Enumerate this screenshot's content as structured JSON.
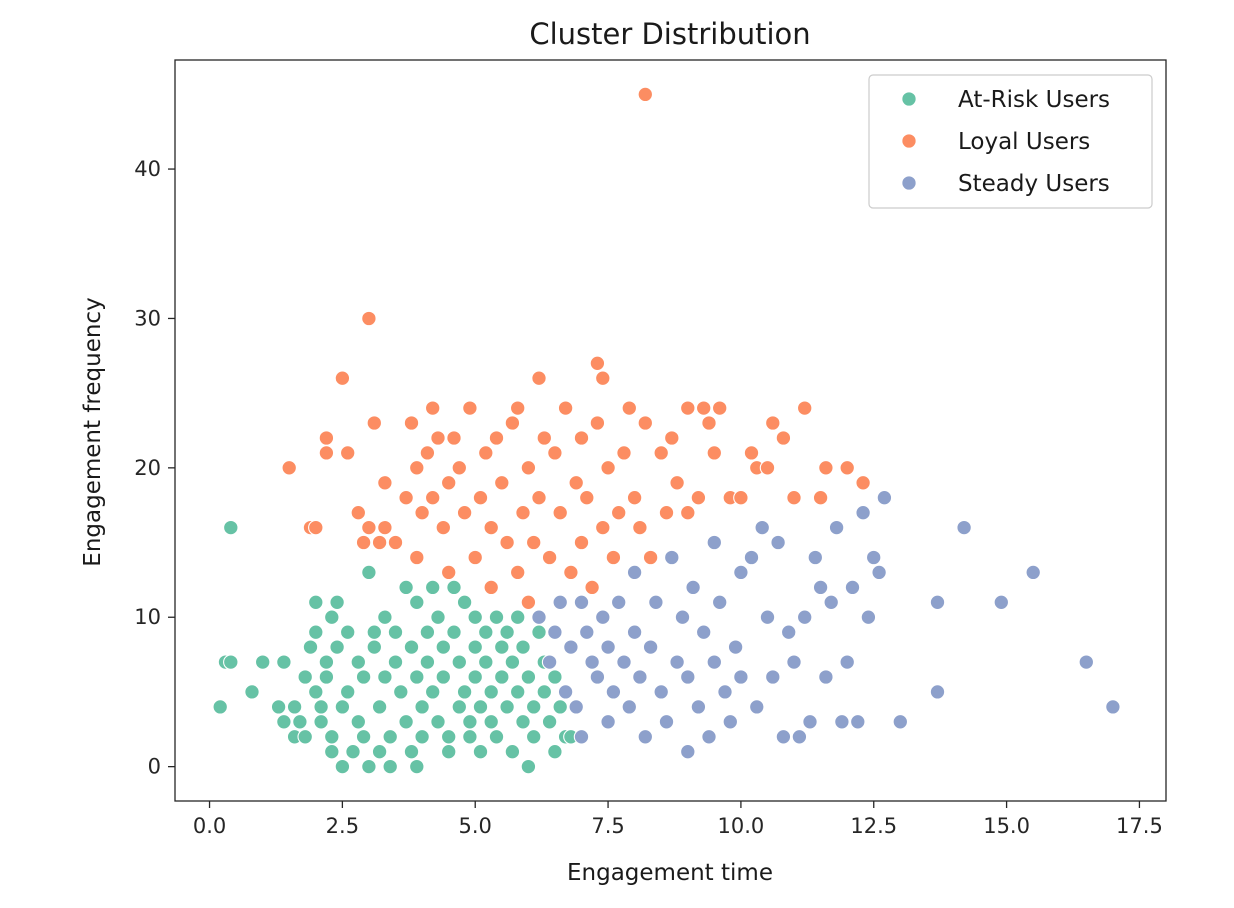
{
  "chart_data": {
    "type": "scatter",
    "title": "Cluster Distribution",
    "xlabel": "Engagement time",
    "ylabel": "Engagement frequency",
    "xlim": [
      -0.65,
      18.0
    ],
    "ylim": [
      -2.3,
      47.3
    ],
    "xticks": [
      0.0,
      2.5,
      5.0,
      7.5,
      10.0,
      12.5,
      15.0,
      17.5
    ],
    "xtick_labels": [
      "0.0",
      "2.5",
      "5.0",
      "7.5",
      "10.0",
      "12.5",
      "15.0",
      "17.5"
    ],
    "yticks": [
      0,
      10,
      20,
      30,
      40
    ],
    "ytick_labels": [
      "0",
      "10",
      "20",
      "30",
      "40"
    ],
    "grid": false,
    "legend_position": "top-right",
    "series": [
      {
        "name": "At-Risk Users",
        "color": "#66c2a5",
        "points": [
          [
            0.2,
            4
          ],
          [
            0.3,
            7
          ],
          [
            0.4,
            16
          ],
          [
            0.4,
            7
          ],
          [
            0.8,
            5
          ],
          [
            1.0,
            7
          ],
          [
            1.3,
            4
          ],
          [
            1.4,
            7
          ],
          [
            1.4,
            3
          ],
          [
            1.6,
            4
          ],
          [
            1.6,
            2
          ],
          [
            1.7,
            3
          ],
          [
            1.8,
            6
          ],
          [
            1.8,
            2
          ],
          [
            1.9,
            8
          ],
          [
            2.0,
            9
          ],
          [
            2.0,
            11
          ],
          [
            2.0,
            5
          ],
          [
            2.1,
            3
          ],
          [
            2.1,
            4
          ],
          [
            2.2,
            7
          ],
          [
            2.2,
            6
          ],
          [
            2.3,
            1
          ],
          [
            2.3,
            10
          ],
          [
            2.3,
            2
          ],
          [
            2.4,
            8
          ],
          [
            2.4,
            11
          ],
          [
            2.5,
            4
          ],
          [
            2.5,
            0
          ],
          [
            2.6,
            5
          ],
          [
            2.6,
            9
          ],
          [
            2.7,
            1
          ],
          [
            2.8,
            7
          ],
          [
            2.8,
            3
          ],
          [
            2.9,
            6
          ],
          [
            2.9,
            2
          ],
          [
            3.0,
            13
          ],
          [
            3.0,
            0
          ],
          [
            3.1,
            9
          ],
          [
            3.1,
            8
          ],
          [
            3.2,
            4
          ],
          [
            3.2,
            1
          ],
          [
            3.3,
            10
          ],
          [
            3.3,
            6
          ],
          [
            3.4,
            2
          ],
          [
            3.4,
            0
          ],
          [
            3.5,
            7
          ],
          [
            3.5,
            9
          ],
          [
            3.6,
            5
          ],
          [
            3.7,
            3
          ],
          [
            3.7,
            12
          ],
          [
            3.8,
            8
          ],
          [
            3.8,
            1
          ],
          [
            3.9,
            11
          ],
          [
            3.9,
            6
          ],
          [
            3.9,
            0
          ],
          [
            4.0,
            4
          ],
          [
            4.0,
            2
          ],
          [
            4.1,
            9
          ],
          [
            4.1,
            7
          ],
          [
            4.2,
            12
          ],
          [
            4.2,
            5
          ],
          [
            4.3,
            3
          ],
          [
            4.3,
            10
          ],
          [
            4.4,
            8
          ],
          [
            4.4,
            6
          ],
          [
            4.5,
            1
          ],
          [
            4.5,
            2
          ],
          [
            4.6,
            9
          ],
          [
            4.6,
            12
          ],
          [
            4.7,
            4
          ],
          [
            4.7,
            7
          ],
          [
            4.8,
            11
          ],
          [
            4.8,
            5
          ],
          [
            4.9,
            3
          ],
          [
            4.9,
            2
          ],
          [
            5.0,
            8
          ],
          [
            5.0,
            10
          ],
          [
            5.0,
            6
          ],
          [
            5.1,
            4
          ],
          [
            5.1,
            1
          ],
          [
            5.2,
            9
          ],
          [
            5.2,
            7
          ],
          [
            5.3,
            3
          ],
          [
            5.3,
            5
          ],
          [
            5.4,
            10
          ],
          [
            5.4,
            2
          ],
          [
            5.5,
            8
          ],
          [
            5.5,
            6
          ],
          [
            5.6,
            4
          ],
          [
            5.6,
            9
          ],
          [
            5.7,
            1
          ],
          [
            5.7,
            7
          ],
          [
            5.8,
            5
          ],
          [
            5.8,
            10
          ],
          [
            5.9,
            3
          ],
          [
            5.9,
            8
          ],
          [
            6.0,
            6
          ],
          [
            6.0,
            0
          ],
          [
            6.1,
            4
          ],
          [
            6.1,
            2
          ],
          [
            6.2,
            9
          ],
          [
            6.3,
            7
          ],
          [
            6.3,
            5
          ],
          [
            6.4,
            3
          ],
          [
            6.5,
            6
          ],
          [
            6.5,
            1
          ],
          [
            6.6,
            4
          ],
          [
            6.7,
            2
          ],
          [
            6.8,
            2
          ]
        ]
      },
      {
        "name": "Loyal Users",
        "color": "#fc8d62",
        "points": [
          [
            1.5,
            20
          ],
          [
            1.9,
            16
          ],
          [
            2.0,
            16
          ],
          [
            2.2,
            22
          ],
          [
            2.2,
            21
          ],
          [
            2.5,
            26
          ],
          [
            2.6,
            21
          ],
          [
            2.8,
            17
          ],
          [
            2.9,
            15
          ],
          [
            3.0,
            30
          ],
          [
            3.0,
            16
          ],
          [
            3.1,
            23
          ],
          [
            3.2,
            15
          ],
          [
            3.3,
            19
          ],
          [
            3.3,
            16
          ],
          [
            3.5,
            15
          ],
          [
            3.7,
            18
          ],
          [
            3.8,
            23
          ],
          [
            3.9,
            20
          ],
          [
            3.9,
            14
          ],
          [
            4.0,
            17
          ],
          [
            4.1,
            21
          ],
          [
            4.2,
            24
          ],
          [
            4.2,
            18
          ],
          [
            4.3,
            22
          ],
          [
            4.4,
            16
          ],
          [
            4.5,
            13
          ],
          [
            4.5,
            19
          ],
          [
            4.6,
            22
          ],
          [
            4.7,
            20
          ],
          [
            4.8,
            17
          ],
          [
            4.9,
            24
          ],
          [
            5.0,
            14
          ],
          [
            5.1,
            18
          ],
          [
            5.2,
            21
          ],
          [
            5.3,
            16
          ],
          [
            5.3,
            12
          ],
          [
            5.4,
            22
          ],
          [
            5.5,
            19
          ],
          [
            5.6,
            15
          ],
          [
            5.7,
            23
          ],
          [
            5.8,
            13
          ],
          [
            5.8,
            24
          ],
          [
            5.9,
            17
          ],
          [
            6.0,
            11
          ],
          [
            6.0,
            20
          ],
          [
            6.1,
            15
          ],
          [
            6.2,
            26
          ],
          [
            6.2,
            18
          ],
          [
            6.3,
            22
          ],
          [
            6.4,
            14
          ],
          [
            6.5,
            21
          ],
          [
            6.6,
            17
          ],
          [
            6.7,
            24
          ],
          [
            6.8,
            13
          ],
          [
            6.9,
            19
          ],
          [
            7.0,
            22
          ],
          [
            7.0,
            15
          ],
          [
            7.1,
            18
          ],
          [
            7.2,
            12
          ],
          [
            7.3,
            23
          ],
          [
            7.3,
            27
          ],
          [
            7.4,
            26
          ],
          [
            7.4,
            16
          ],
          [
            7.5,
            20
          ],
          [
            7.6,
            14
          ],
          [
            7.7,
            17
          ],
          [
            7.8,
            21
          ],
          [
            7.9,
            24
          ],
          [
            8.0,
            18
          ],
          [
            8.1,
            16
          ],
          [
            8.2,
            45
          ],
          [
            8.2,
            23
          ],
          [
            8.3,
            14
          ],
          [
            8.5,
            21
          ],
          [
            8.6,
            17
          ],
          [
            8.7,
            22
          ],
          [
            8.8,
            19
          ],
          [
            9.0,
            24
          ],
          [
            9.0,
            17
          ],
          [
            9.2,
            18
          ],
          [
            9.3,
            24
          ],
          [
            9.4,
            23
          ],
          [
            9.5,
            21
          ],
          [
            9.6,
            24
          ],
          [
            9.8,
            18
          ],
          [
            10.0,
            18
          ],
          [
            10.2,
            21
          ],
          [
            10.3,
            20
          ],
          [
            10.5,
            20
          ],
          [
            10.6,
            23
          ],
          [
            10.8,
            22
          ],
          [
            11.0,
            18
          ],
          [
            11.2,
            24
          ],
          [
            11.5,
            18
          ],
          [
            11.6,
            20
          ],
          [
            12.0,
            20
          ],
          [
            12.3,
            19
          ]
        ]
      },
      {
        "name": "Steady Users",
        "color": "#8da0cb",
        "points": [
          [
            6.2,
            10
          ],
          [
            6.4,
            7
          ],
          [
            6.5,
            9
          ],
          [
            6.6,
            11
          ],
          [
            6.7,
            5
          ],
          [
            6.8,
            8
          ],
          [
            6.9,
            4
          ],
          [
            7.0,
            11
          ],
          [
            7.0,
            2
          ],
          [
            7.1,
            9
          ],
          [
            7.2,
            7
          ],
          [
            7.3,
            6
          ],
          [
            7.4,
            10
          ],
          [
            7.5,
            3
          ],
          [
            7.5,
            8
          ],
          [
            7.6,
            5
          ],
          [
            7.7,
            11
          ],
          [
            7.8,
            7
          ],
          [
            7.9,
            4
          ],
          [
            8.0,
            13
          ],
          [
            8.0,
            9
          ],
          [
            8.1,
            6
          ],
          [
            8.2,
            2
          ],
          [
            8.3,
            8
          ],
          [
            8.4,
            11
          ],
          [
            8.5,
            5
          ],
          [
            8.6,
            3
          ],
          [
            8.7,
            14
          ],
          [
            8.8,
            7
          ],
          [
            8.9,
            10
          ],
          [
            9.0,
            1
          ],
          [
            9.0,
            6
          ],
          [
            9.1,
            12
          ],
          [
            9.2,
            4
          ],
          [
            9.3,
            9
          ],
          [
            9.4,
            2
          ],
          [
            9.5,
            15
          ],
          [
            9.5,
            7
          ],
          [
            9.6,
            11
          ],
          [
            9.7,
            5
          ],
          [
            9.8,
            3
          ],
          [
            9.9,
            8
          ],
          [
            10.0,
            13
          ],
          [
            10.0,
            6
          ],
          [
            10.2,
            14
          ],
          [
            10.3,
            4
          ],
          [
            10.4,
            16
          ],
          [
            10.5,
            10
          ],
          [
            10.6,
            6
          ],
          [
            10.7,
            15
          ],
          [
            10.8,
            2
          ],
          [
            10.9,
            9
          ],
          [
            11.0,
            7
          ],
          [
            11.1,
            2
          ],
          [
            11.2,
            10
          ],
          [
            11.3,
            3
          ],
          [
            11.4,
            14
          ],
          [
            11.5,
            12
          ],
          [
            11.6,
            6
          ],
          [
            11.7,
            11
          ],
          [
            11.8,
            16
          ],
          [
            11.9,
            3
          ],
          [
            12.0,
            7
          ],
          [
            12.1,
            12
          ],
          [
            12.2,
            3
          ],
          [
            12.3,
            17
          ],
          [
            12.4,
            10
          ],
          [
            12.5,
            14
          ],
          [
            12.6,
            13
          ],
          [
            12.7,
            18
          ],
          [
            13.0,
            3
          ],
          [
            13.7,
            11
          ],
          [
            13.7,
            5
          ],
          [
            14.2,
            16
          ],
          [
            14.9,
            11
          ],
          [
            15.5,
            13
          ],
          [
            16.5,
            7
          ],
          [
            17.0,
            4
          ]
        ]
      }
    ]
  }
}
